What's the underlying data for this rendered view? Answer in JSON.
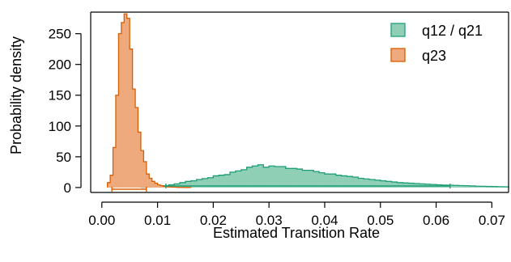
{
  "chart_data": {
    "type": "histogram",
    "xlabel": "Estimated Transition Rate",
    "ylabel": "Probability density",
    "xlim": [
      -0.002,
      0.073
    ],
    "ylim": [
      -8,
      285
    ],
    "x_ticks": [
      "0.00",
      "0.01",
      "0.02",
      "0.03",
      "0.04",
      "0.05",
      "0.06",
      "0.07"
    ],
    "y_ticks": [
      "0",
      "50",
      "100",
      "150",
      "200",
      "250"
    ],
    "legend_position": "top-right",
    "series": [
      {
        "name": "q12 / q21",
        "fill": "#8fcfb5",
        "stroke": "#1f9e77",
        "bin_width": 0.001,
        "bins": [
          [
            0.007,
            0.4
          ],
          [
            0.008,
            1.0
          ],
          [
            0.009,
            1.5
          ],
          [
            0.01,
            2.0
          ],
          [
            0.011,
            3.0
          ],
          [
            0.012,
            4.5
          ],
          [
            0.013,
            6.0
          ],
          [
            0.014,
            8.0
          ],
          [
            0.015,
            10.0
          ],
          [
            0.016,
            11.0
          ],
          [
            0.017,
            13.0
          ],
          [
            0.018,
            14.5
          ],
          [
            0.019,
            16.0
          ],
          [
            0.02,
            19.0
          ],
          [
            0.021,
            20.0
          ],
          [
            0.022,
            21.0
          ],
          [
            0.023,
            25.0
          ],
          [
            0.024,
            27.0
          ],
          [
            0.025,
            29.0
          ],
          [
            0.026,
            33.0
          ],
          [
            0.027,
            35.0
          ],
          [
            0.028,
            37.0
          ],
          [
            0.029,
            33.0
          ],
          [
            0.03,
            35.0
          ],
          [
            0.031,
            34.0
          ],
          [
            0.032,
            34.0
          ],
          [
            0.033,
            31.0
          ],
          [
            0.034,
            31.0
          ],
          [
            0.035,
            30.0
          ],
          [
            0.036,
            28.0
          ],
          [
            0.037,
            28.0
          ],
          [
            0.038,
            26.0
          ],
          [
            0.039,
            24.0
          ],
          [
            0.04,
            22.0
          ],
          [
            0.041,
            22.0
          ],
          [
            0.042,
            20.0
          ],
          [
            0.043,
            19.0
          ],
          [
            0.044,
            18.0
          ],
          [
            0.045,
            17.0
          ],
          [
            0.046,
            15.0
          ],
          [
            0.047,
            14.0
          ],
          [
            0.048,
            13.0
          ],
          [
            0.049,
            12.0
          ],
          [
            0.05,
            11.0
          ],
          [
            0.051,
            10.0
          ],
          [
            0.052,
            9.0
          ],
          [
            0.053,
            8.0
          ],
          [
            0.054,
            7.5
          ],
          [
            0.055,
            7.0
          ],
          [
            0.056,
            6.5
          ],
          [
            0.057,
            6.0
          ],
          [
            0.058,
            5.5
          ],
          [
            0.059,
            5.0
          ],
          [
            0.06,
            4.5
          ],
          [
            0.061,
            4.0
          ],
          [
            0.062,
            3.8
          ],
          [
            0.063,
            3.5
          ],
          [
            0.064,
            3.2
          ],
          [
            0.065,
            3.0
          ],
          [
            0.066,
            2.6
          ],
          [
            0.067,
            2.2
          ],
          [
            0.068,
            2.0
          ],
          [
            0.069,
            1.8
          ],
          [
            0.07,
            1.6
          ],
          [
            0.071,
            1.4
          ],
          [
            0.072,
            1.2
          ]
        ],
        "interval": [
          0.0115,
          0.0625
        ]
      },
      {
        "name": "q23",
        "fill": "#eea97c",
        "stroke": "#d95f02",
        "bin_width": 0.0005,
        "bins": [
          [
            0.001,
            8.0
          ],
          [
            0.0015,
            20.0
          ],
          [
            0.002,
            65.0
          ],
          [
            0.0025,
            150.0
          ],
          [
            0.003,
            250.0
          ],
          [
            0.0035,
            268.0
          ],
          [
            0.004,
            282.0
          ],
          [
            0.0045,
            275.0
          ],
          [
            0.005,
            225.0
          ],
          [
            0.0055,
            160.0
          ],
          [
            0.006,
            130.0
          ],
          [
            0.0065,
            90.0
          ],
          [
            0.007,
            60.0
          ],
          [
            0.0075,
            42.0
          ],
          [
            0.008,
            22.0
          ],
          [
            0.0085,
            15.0
          ],
          [
            0.009,
            10.0
          ],
          [
            0.0095,
            7.0
          ],
          [
            0.01,
            4.5
          ],
          [
            0.0105,
            3.0
          ],
          [
            0.011,
            2.0
          ],
          [
            0.0115,
            1.5
          ],
          [
            0.012,
            1.0
          ],
          [
            0.0125,
            0.7
          ],
          [
            0.013,
            0.5
          ],
          [
            0.0135,
            0.3
          ],
          [
            0.014,
            0.2
          ],
          [
            0.0145,
            0.1
          ],
          [
            0.015,
            0.1
          ],
          [
            0.0155,
            0.1
          ]
        ],
        "interval": [
          0.0018,
          0.008
        ]
      }
    ]
  }
}
